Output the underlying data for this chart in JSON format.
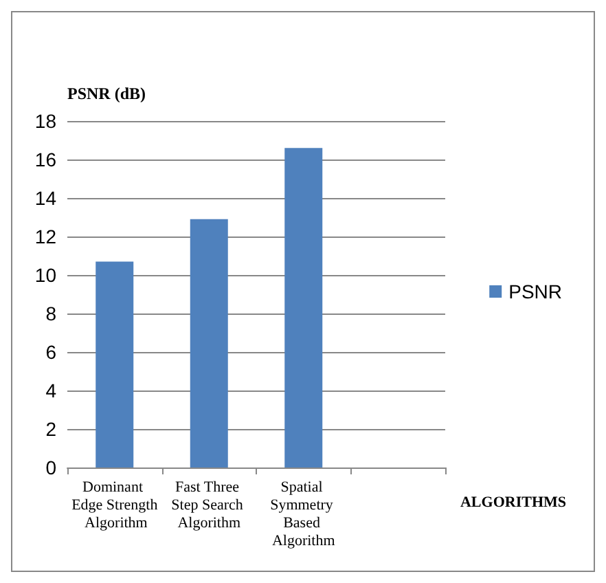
{
  "chart_data": {
    "type": "bar",
    "ylabel": "PSNR (dB)",
    "xlabel": "ALGORITHMS",
    "categories": [
      "Dominant Edge Strength Algorithm",
      "Fast Three Step Search Algorithm",
      "Spatial Symmetry Based Algorithm",
      null
    ],
    "series": [
      {
        "name": "PSNR",
        "color": "#4f81bd",
        "values": [
          10.7,
          12.9,
          16.6,
          null
        ]
      }
    ],
    "ylim": [
      0,
      18
    ],
    "yticks": [
      0,
      2,
      4,
      6,
      8,
      10,
      12,
      14,
      16,
      18
    ],
    "grid": "y",
    "legend": "right"
  }
}
